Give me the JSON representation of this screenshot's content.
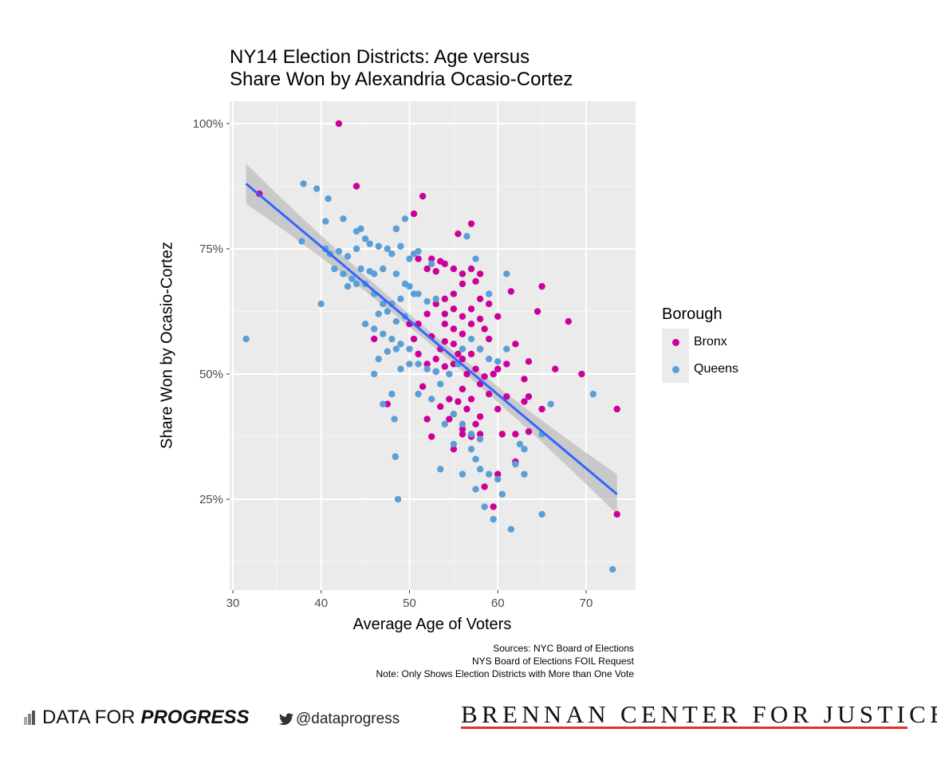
{
  "chart_data": {
    "type": "scatter",
    "title": "NY14 Election Districts: Age versus\nShare Won by Alexandria Ocasio-Cortez",
    "title_lines": [
      "NY14 Election Districts: Age versus",
      "Share Won by Alexandria Ocasio-Cortez"
    ],
    "xlabel": "Average Age of Voters",
    "ylabel": "Share Won by Ocasio-Cortez",
    "xlim": [
      29.64,
      75.6
    ],
    "ylim": [
      6.85,
      104.46
    ],
    "x_ticks": [
      30,
      40,
      50,
      60,
      70
    ],
    "x_tick_labels": [
      "30",
      "40",
      "50",
      "60",
      "70"
    ],
    "y_ticks": [
      25,
      50,
      75,
      100
    ],
    "y_tick_labels": [
      "25%",
      "50%",
      "75%",
      "100%"
    ],
    "grid": true,
    "legend": {
      "title": "Borough",
      "placement": "right",
      "entries": [
        "Bronx",
        "Queens"
      ]
    },
    "colors": {
      "Bronx": "#cc0099",
      "Queens": "#5b9fd6",
      "fit": "#3366ff",
      "band": "#b3b3b3",
      "panel": "#ebebeb"
    },
    "fit_line": {
      "x": [
        31.5,
        73.5
      ],
      "y": [
        88,
        26
      ],
      "ci_halfwidth_ends": 4,
      "ci_halfwidth_mid": 1.2
    },
    "series": [
      {
        "name": "Bronx",
        "points": [
          [
            42,
            100
          ],
          [
            33,
            86
          ],
          [
            44,
            87.5
          ],
          [
            51.5,
            85.5
          ],
          [
            57,
            80
          ],
          [
            55.5,
            78
          ],
          [
            48.5,
            79
          ],
          [
            50.5,
            82
          ],
          [
            52.5,
            73
          ],
          [
            53.5,
            72.5
          ],
          [
            54,
            72
          ],
          [
            51,
            73
          ],
          [
            52,
            71
          ],
          [
            53,
            70.5
          ],
          [
            55,
            71
          ],
          [
            56,
            70
          ],
          [
            57,
            71
          ],
          [
            58,
            70
          ],
          [
            57.5,
            68.5
          ],
          [
            56,
            68
          ],
          [
            55,
            66
          ],
          [
            54,
            65
          ],
          [
            53,
            64
          ],
          [
            52,
            62
          ],
          [
            51,
            60
          ],
          [
            50,
            60
          ],
          [
            54,
            60
          ],
          [
            55,
            59
          ],
          [
            56,
            58
          ],
          [
            57,
            60
          ],
          [
            58,
            61
          ],
          [
            60,
            61.5
          ],
          [
            59,
            57
          ],
          [
            58,
            55
          ],
          [
            57,
            54
          ],
          [
            56,
            53
          ],
          [
            55,
            52
          ],
          [
            54,
            51.5
          ],
          [
            53,
            50.5
          ],
          [
            52,
            52
          ],
          [
            51,
            54
          ],
          [
            50.5,
            57
          ],
          [
            52.5,
            57.5
          ],
          [
            53.5,
            55
          ],
          [
            55.5,
            54
          ],
          [
            56.5,
            50
          ],
          [
            57.5,
            51
          ],
          [
            58.5,
            49.5
          ],
          [
            59.5,
            50
          ],
          [
            60,
            51
          ],
          [
            61,
            52
          ],
          [
            62,
            56
          ],
          [
            63,
            49
          ],
          [
            63.5,
            52.5
          ],
          [
            65,
            67.5
          ],
          [
            64.5,
            62.5
          ],
          [
            61.5,
            66.5
          ],
          [
            68,
            60.5
          ],
          [
            69.5,
            50
          ],
          [
            66.5,
            51
          ],
          [
            63,
            44.5
          ],
          [
            63.5,
            45.5
          ],
          [
            65,
            43
          ],
          [
            73.5,
            43
          ],
          [
            73.5,
            22
          ],
          [
            62,
            38
          ],
          [
            62,
            32.5
          ],
          [
            63.5,
            38.5
          ],
          [
            60,
            30
          ],
          [
            58.5,
            27.5
          ],
          [
            59.5,
            23.5
          ],
          [
            58,
            38
          ],
          [
            57,
            37.5
          ],
          [
            56,
            38
          ],
          [
            57.5,
            40
          ],
          [
            58,
            41.5
          ],
          [
            56.5,
            43
          ],
          [
            55.5,
            44.5
          ],
          [
            54.5,
            45
          ],
          [
            53.5,
            43.5
          ],
          [
            54.5,
            41
          ],
          [
            57,
            45
          ],
          [
            56,
            47
          ],
          [
            58,
            48
          ],
          [
            59,
            46
          ],
          [
            60,
            43
          ],
          [
            61,
            45.5
          ],
          [
            52,
            41
          ],
          [
            52.5,
            37.5
          ],
          [
            55,
            35
          ],
          [
            46,
            57
          ],
          [
            47.5,
            44
          ],
          [
            56,
            39
          ],
          [
            54,
            62
          ],
          [
            55,
            63
          ],
          [
            56,
            61.5
          ],
          [
            57,
            63
          ],
          [
            58,
            65
          ],
          [
            59,
            64
          ],
          [
            58.5,
            59
          ],
          [
            55,
            56
          ],
          [
            54,
            56.5
          ],
          [
            53,
            53
          ],
          [
            51.5,
            47.5
          ],
          [
            60.5,
            38
          ]
        ]
      },
      {
        "name": "Queens",
        "points": [
          [
            31.5,
            57
          ],
          [
            38,
            88
          ],
          [
            39.5,
            87
          ],
          [
            40.8,
            85
          ],
          [
            40.5,
            80.5
          ],
          [
            42.5,
            81
          ],
          [
            40,
            64
          ],
          [
            37.8,
            76.5
          ],
          [
            40.5,
            75
          ],
          [
            41,
            74
          ],
          [
            42,
            74.5
          ],
          [
            43,
            73.5
          ],
          [
            44,
            75
          ],
          [
            44,
            78.5
          ],
          [
            44.5,
            79
          ],
          [
            45,
            77
          ],
          [
            45.5,
            76
          ],
          [
            46.5,
            75.5
          ],
          [
            47.5,
            75
          ],
          [
            48,
            74
          ],
          [
            49,
            75.5
          ],
          [
            49.5,
            81
          ],
          [
            48.5,
            79
          ],
          [
            50.5,
            74
          ],
          [
            51,
            74.5
          ],
          [
            50,
            73
          ],
          [
            52.5,
            72
          ],
          [
            42.5,
            70
          ],
          [
            43.5,
            69
          ],
          [
            44.5,
            71
          ],
          [
            45.5,
            70.5
          ],
          [
            46,
            70
          ],
          [
            47,
            71
          ],
          [
            48.5,
            70
          ],
          [
            49.5,
            68
          ],
          [
            50,
            67.5
          ],
          [
            41.5,
            71
          ],
          [
            43,
            67.5
          ],
          [
            44,
            68
          ],
          [
            45,
            68
          ],
          [
            46,
            66
          ],
          [
            47,
            64
          ],
          [
            48,
            64
          ],
          [
            49,
            65
          ],
          [
            50.5,
            66
          ],
          [
            51,
            66
          ],
          [
            52,
            64.5
          ],
          [
            53,
            65
          ],
          [
            46.5,
            62
          ],
          [
            47.5,
            62.5
          ],
          [
            48.5,
            60.5
          ],
          [
            49.5,
            61.5
          ],
          [
            45,
            60
          ],
          [
            46,
            59
          ],
          [
            47,
            58
          ],
          [
            48,
            57
          ],
          [
            49,
            56
          ],
          [
            50,
            55
          ],
          [
            46.5,
            53
          ],
          [
            47.5,
            54.5
          ],
          [
            48.5,
            55
          ],
          [
            49,
            51
          ],
          [
            50,
            52
          ],
          [
            51,
            52
          ],
          [
            52,
            51
          ],
          [
            53,
            50.5
          ],
          [
            46,
            50
          ],
          [
            48,
            46
          ],
          [
            47,
            44
          ],
          [
            48.3,
            41
          ],
          [
            48.4,
            33.5
          ],
          [
            48.7,
            25
          ],
          [
            51,
            46
          ],
          [
            52.5,
            45
          ],
          [
            53.5,
            48
          ],
          [
            54.5,
            50
          ],
          [
            55.5,
            52
          ],
          [
            56,
            55
          ],
          [
            57,
            57
          ],
          [
            58,
            55
          ],
          [
            59,
            53
          ],
          [
            60,
            52.5
          ],
          [
            61,
            55
          ],
          [
            55,
            42
          ],
          [
            56,
            40
          ],
          [
            57,
            38
          ],
          [
            58,
            37
          ],
          [
            57,
            35
          ],
          [
            57.5,
            33
          ],
          [
            58,
            31
          ],
          [
            59,
            30
          ],
          [
            60,
            29
          ],
          [
            60.5,
            26
          ],
          [
            59.5,
            21
          ],
          [
            61.5,
            19
          ],
          [
            62,
            32
          ],
          [
            63,
            35
          ],
          [
            63,
            30
          ],
          [
            62.5,
            36
          ],
          [
            56,
            30
          ],
          [
            57.5,
            27
          ],
          [
            58.5,
            23.5
          ],
          [
            53.5,
            31
          ],
          [
            65,
            22
          ],
          [
            65,
            38
          ],
          [
            66,
            44
          ],
          [
            70.8,
            46
          ],
          [
            73,
            11
          ],
          [
            61,
            70
          ],
          [
            59,
            66
          ],
          [
            56.5,
            77.5
          ],
          [
            57.5,
            73
          ],
          [
            55,
            36
          ],
          [
            54,
            40
          ]
        ]
      }
    ],
    "sources": [
      "Sources: NYC Board of Elections",
      "NYS Board of Elections FOIL Request",
      "Note: Only Shows Election Districts with More than One Vote"
    ]
  },
  "footer": {
    "dfp_prefix": "DATA FOR",
    "dfp_bold": "PROGRESS",
    "twitter": "@dataprogress",
    "brennan": "BRENNAN CENTER FOR JUSTICE"
  }
}
